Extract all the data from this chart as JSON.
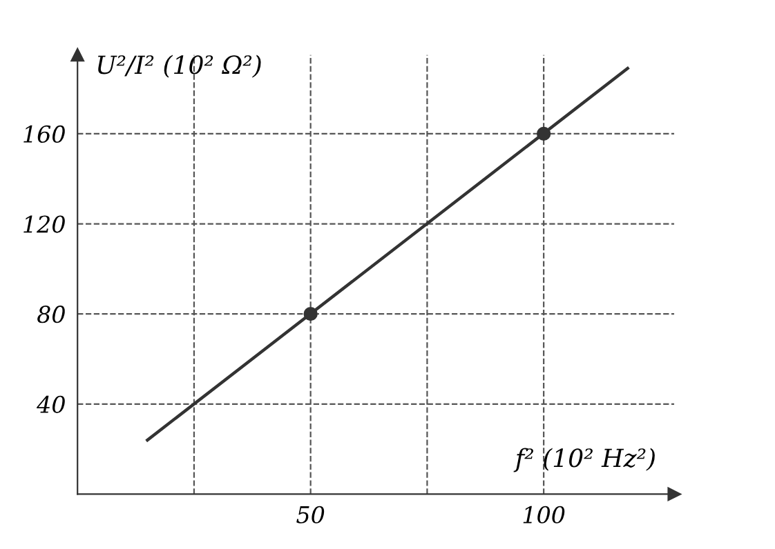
{
  "chart_data": {
    "type": "line",
    "xlabel": "f² (10² Hz²)",
    "ylabel": "U²/I² (10² Ω²)",
    "xlim": [
      0,
      128
    ],
    "ylim": [
      0,
      195
    ],
    "xticks": [
      {
        "value": 25,
        "label": null
      },
      50,
      {
        "value": 75,
        "label": null
      },
      100
    ],
    "yticks": [
      40,
      80,
      120,
      160
    ],
    "grid": true,
    "line_style": "solid",
    "series": [
      {
        "color": "#333333",
        "x": [
          15,
          118
        ],
        "values": [
          24,
          189
        ],
        "marker": "none"
      },
      {
        "type": "scatter",
        "color": "#333333",
        "x": [
          50,
          100
        ],
        "values": [
          80,
          160
        ],
        "marker": "circle"
      }
    ]
  }
}
